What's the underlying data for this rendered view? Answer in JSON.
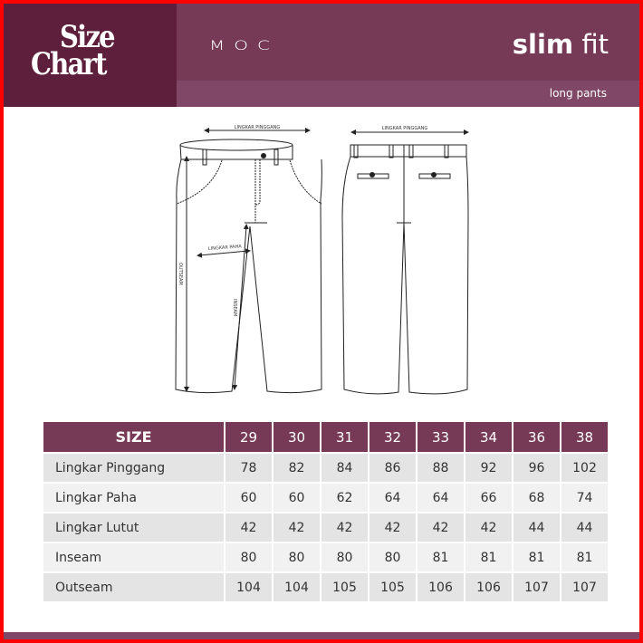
{
  "header": {
    "logo_line1": "Size",
    "logo_line2": "Chart",
    "brand": "MOC",
    "fit_bold": "slim",
    "fit_light": "fit",
    "product_type": "long pants"
  },
  "diagram": {
    "front_waist_label": "LINGKAR PINGGANG",
    "back_waist_label": "LINGKAR PINGGANG",
    "thigh_label": "LINGKAR PAHA",
    "outseam_label": "OUTSEAM",
    "inseam_label": "INSEAM"
  },
  "table": {
    "header_label": "SIZE",
    "sizes": [
      "29",
      "30",
      "31",
      "32",
      "33",
      "34",
      "36",
      "38"
    ],
    "rows": [
      {
        "label": "Lingkar Pinggang",
        "values": [
          "78",
          "82",
          "84",
          "86",
          "88",
          "92",
          "96",
          "102"
        ]
      },
      {
        "label": "Lingkar Paha",
        "values": [
          "60",
          "60",
          "62",
          "64",
          "64",
          "66",
          "68",
          "74"
        ]
      },
      {
        "label": "Lingkar Lutut",
        "values": [
          "42",
          "42",
          "42",
          "42",
          "42",
          "42",
          "44",
          "44"
        ]
      },
      {
        "label": "Inseam",
        "values": [
          "80",
          "80",
          "80",
          "80",
          "81",
          "81",
          "81",
          "81"
        ]
      },
      {
        "label": "Outseam",
        "values": [
          "104",
          "104",
          "105",
          "105",
          "106",
          "106",
          "107",
          "107"
        ]
      }
    ]
  },
  "colors": {
    "header_dark": "#5e1f3d",
    "header": "#763a57",
    "header_light": "#804766",
    "border": "#ff0000"
  }
}
